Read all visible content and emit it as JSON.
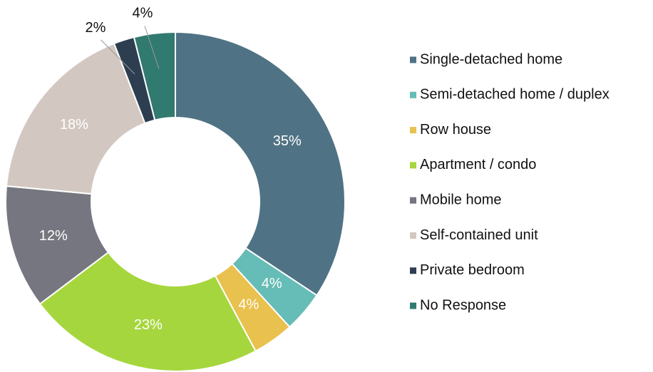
{
  "chart_data": {
    "type": "donut",
    "categories": [
      "Single-detached home",
      "Semi-detached home / duplex",
      "Row house",
      "Apartment / condo",
      "Mobile home",
      "Self-contained unit",
      "Private bedroom",
      "No Response"
    ],
    "values": [
      35,
      4,
      4,
      23,
      12,
      18,
      2,
      4
    ],
    "colors": [
      "#4f7384",
      "#66bcb6",
      "#e9c14e",
      "#a6d63d",
      "#75767f",
      "#d3c7c1",
      "#2c3e4f",
      "#317a70"
    ],
    "value_labels": [
      "35%",
      "4%",
      "4%",
      "23%",
      "12%",
      "18%",
      "2%",
      "4%"
    ],
    "legend": "right"
  }
}
